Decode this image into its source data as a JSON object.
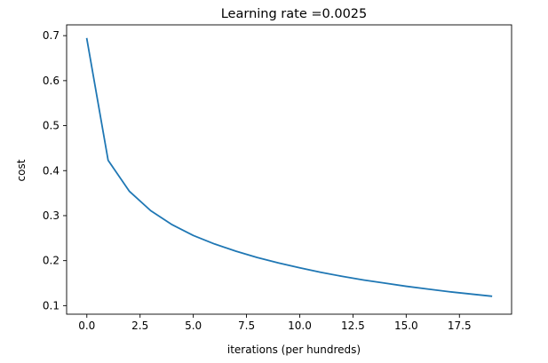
{
  "chart_data": {
    "type": "line",
    "title": "Learning rate =0.0025",
    "xlabel": "iterations (per hundreds)",
    "ylabel": "cost",
    "xlim": [
      -0.95,
      19.95
    ],
    "ylim": [
      0.081,
      0.724
    ],
    "xticks": [
      0,
      2.5,
      5,
      7.5,
      10,
      12.5,
      15,
      17.5
    ],
    "xtick_labels": [
      "0.0",
      "2.5",
      "5.0",
      "7.5",
      "10.0",
      "12.5",
      "15.0",
      "17.5"
    ],
    "yticks": [
      0.1,
      0.2,
      0.3,
      0.4,
      0.5,
      0.6,
      0.7
    ],
    "ytick_labels": [
      "0.1",
      "0.2",
      "0.3",
      "0.4",
      "0.5",
      "0.6",
      "0.7"
    ],
    "grid": false,
    "series": [
      {
        "color": "#1f77b4",
        "x": [
          0,
          1,
          2,
          3,
          4,
          5,
          6,
          7,
          8,
          9,
          10,
          11,
          12,
          13,
          14,
          15,
          16,
          17,
          18,
          19
        ],
        "values": [
          0.693,
          0.423,
          0.354,
          0.311,
          0.28,
          0.256,
          0.237,
          0.221,
          0.207,
          0.195,
          0.184,
          0.174,
          0.165,
          0.157,
          0.15,
          0.143,
          0.137,
          0.131,
          0.126,
          0.121
        ]
      }
    ]
  }
}
